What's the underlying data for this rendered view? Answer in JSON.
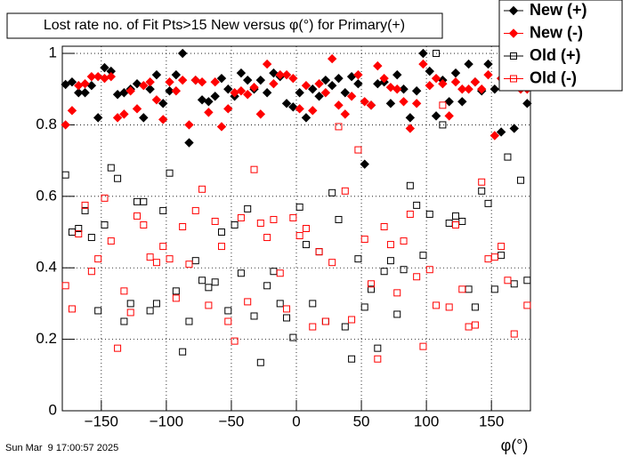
{
  "chart_data": {
    "type": "scatter",
    "title": "Lost rate no. of Fit Pts>15 New versus φ(°) for Primary(+)",
    "x_label": "φ(°)",
    "footer": "Sun Mar  9 17:00:57 2025",
    "xlim": [
      -180,
      180
    ],
    "ylim": [
      0,
      1.02
    ],
    "xticks": [
      {
        "value": -150,
        "label": "−150"
      },
      {
        "value": -100,
        "label": "−100"
      },
      {
        "value": -50,
        "label": "−50"
      },
      0,
      50,
      100,
      150
    ],
    "yticks": [
      0,
      0.2,
      0.4,
      0.6,
      0.8,
      1
    ],
    "grid": true,
    "legend": "top-right",
    "x": [
      -177.5,
      -172.5,
      -167.5,
      -162.5,
      -157.5,
      -152.5,
      -147.5,
      -142.5,
      -137.5,
      -132.5,
      -127.5,
      -122.5,
      -117.5,
      -112.5,
      -107.5,
      -102.5,
      -97.5,
      -92.5,
      -87.5,
      -82.5,
      -77.5,
      -72.5,
      -67.5,
      -62.5,
      -57.5,
      -52.5,
      -47.5,
      -42.5,
      -37.5,
      -32.5,
      -27.5,
      -22.5,
      -17.5,
      -12.5,
      -7.5,
      -2.5,
      2.5,
      7.5,
      12.5,
      17.5,
      22.5,
      27.5,
      32.5,
      37.5,
      42.5,
      47.5,
      52.5,
      57.5,
      62.5,
      67.5,
      72.5,
      77.5,
      82.5,
      87.5,
      92.5,
      97.5,
      102.5,
      107.5,
      112.5,
      117.5,
      122.5,
      127.5,
      132.5,
      137.5,
      142.5,
      147.5,
      152.5,
      157.5,
      162.5,
      167.5,
      172.5,
      177.5
    ],
    "series": [
      {
        "name": "New (+)",
        "color": "#000000",
        "marker": "diamond",
        "values": [
          0.913,
          0.92,
          0.89,
          0.89,
          0.91,
          0.82,
          0.96,
          0.95,
          0.885,
          0.89,
          0.9,
          0.915,
          0.82,
          0.9,
          0.94,
          0.86,
          0.895,
          0.94,
          1.0,
          0.75,
          0.925,
          0.87,
          0.865,
          0.88,
          0.93,
          0.9,
          0.88,
          0.945,
          0.925,
          0.9,
          0.925,
          0.89,
          0.945,
          0.935,
          0.86,
          0.85,
          0.89,
          0.82,
          0.9,
          0.88,
          0.925,
          0.91,
          0.93,
          0.89,
          0.935,
          0.915,
          0.69,
          0.855,
          0.915,
          0.92,
          0.86,
          0.94,
          0.9,
          0.82,
          0.895,
          1.0,
          0.95,
          0.825,
          0.925,
          0.865,
          0.945,
          0.865,
          0.97,
          0.92,
          0.895,
          0.97,
          0.9,
          0.78,
          0.935,
          0.79,
          0.915,
          0.86
        ]
      },
      {
        "name": "New (-)",
        "color": "#ff0000",
        "marker": "diamond",
        "values": [
          0.8,
          0.84,
          0.91,
          0.915,
          0.935,
          0.935,
          0.93,
          0.935,
          0.82,
          0.83,
          0.895,
          0.845,
          0.91,
          0.92,
          0.87,
          0.815,
          0.92,
          0.895,
          0.925,
          0.8,
          0.925,
          0.92,
          0.835,
          0.92,
          0.795,
          0.845,
          0.89,
          0.895,
          0.885,
          0.905,
          0.83,
          0.97,
          0.915,
          0.94,
          0.94,
          0.93,
          0.845,
          0.91,
          0.84,
          0.915,
          0.89,
          0.985,
          0.855,
          0.83,
          0.88,
          0.94,
          0.865,
          0.855,
          0.965,
          0.93,
          0.905,
          0.9,
          0.865,
          0.79,
          0.86,
          0.97,
          0.91,
          0.93,
          0.915,
          0.825,
          0.92,
          0.9,
          0.9,
          0.92,
          0.9,
          0.94,
          0.77,
          0.93,
          0.94,
          0.93,
          0.9,
          0.9
        ]
      },
      {
        "name": "Old (+)",
        "color": "#000000",
        "marker": "square",
        "values": [
          0.66,
          0.5,
          0.51,
          0.56,
          0.485,
          0.28,
          0.52,
          0.68,
          0.65,
          0.25,
          0.3,
          0.585,
          0.585,
          0.28,
          0.3,
          0.56,
          0.665,
          0.335,
          0.165,
          0.25,
          0.42,
          0.365,
          0.345,
          0.36,
          0.5,
          0.28,
          0.52,
          0.385,
          0.565,
          0.265,
          0.135,
          0.35,
          0.39,
          0.3,
          0.26,
          0.205,
          0.57,
          0.465,
          0.3,
          0.445,
          0.25,
          0.61,
          0.535,
          0.235,
          0.145,
          0.425,
          0.29,
          0.34,
          0.175,
          0.39,
          0.42,
          0.27,
          0.395,
          0.63,
          0.575,
          0.435,
          0.55,
          1.0,
          0.8,
          0.525,
          0.545,
          0.53,
          0.34,
          0.29,
          0.615,
          0.58,
          0.34,
          0.435,
          0.71,
          0.355,
          0.645,
          0.365
        ]
      },
      {
        "name": "Old (-)",
        "color": "#ff0000",
        "marker": "square",
        "values": [
          0.35,
          0.285,
          0.495,
          0.575,
          0.39,
          0.425,
          0.595,
          0.475,
          0.175,
          0.335,
          0.275,
          0.545,
          0.52,
          0.43,
          0.415,
          0.46,
          0.425,
          0.315,
          0.515,
          0.41,
          0.56,
          0.62,
          0.295,
          0.53,
          0.46,
          0.25,
          0.195,
          0.54,
          0.305,
          0.675,
          0.525,
          0.485,
          0.535,
          0.385,
          0.285,
          0.54,
          0.49,
          0.51,
          0.235,
          0.445,
          0.25,
          0.415,
          0.795,
          0.615,
          0.255,
          0.73,
          0.48,
          0.355,
          0.145,
          0.515,
          0.465,
          0.33,
          0.475,
          0.55,
          0.375,
          0.18,
          0.395,
          0.295,
          0.855,
          0.29,
          0.52,
          0.34,
          0.235,
          0.24,
          0.64,
          0.425,
          0.43,
          0.46,
          0.365,
          0.215,
          0.925,
          0.295
        ]
      }
    ]
  }
}
